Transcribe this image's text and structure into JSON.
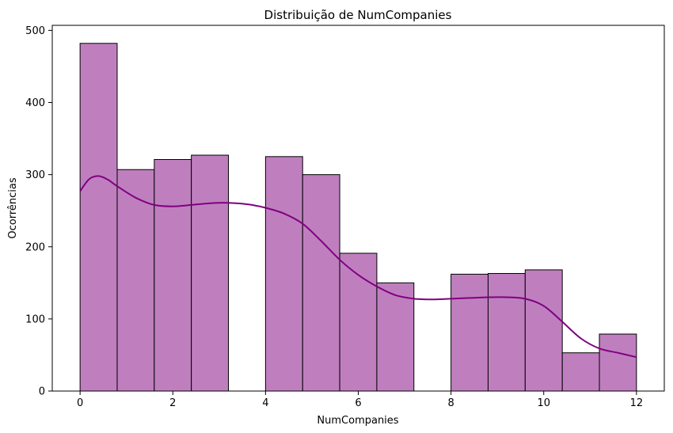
{
  "chart_data": {
    "type": "bar",
    "subtype": "histogram_with_kde",
    "title": "Distribuição de NumCompanies",
    "xlabel": "NumCompanies",
    "ylabel": "Ocorrências",
    "xlim": [
      -0.6,
      12.6
    ],
    "ylim": [
      0,
      507
    ],
    "xticks": [
      0,
      2,
      4,
      6,
      8,
      10,
      12
    ],
    "yticks": [
      0,
      100,
      200,
      300,
      400,
      500
    ],
    "grid": false,
    "bar_color": "#bf7fbf",
    "bar_edge_color": "#000000",
    "kde_color": "#800080",
    "bins": [
      {
        "x0": 0.0,
        "x1": 0.8,
        "value": 482
      },
      {
        "x0": 0.8,
        "x1": 1.6,
        "value": 307
      },
      {
        "x0": 1.6,
        "x1": 2.4,
        "value": 321
      },
      {
        "x0": 2.4,
        "x1": 3.2,
        "value": 327
      },
      {
        "x0": 3.2,
        "x1": 4.0,
        "value": 0
      },
      {
        "x0": 4.0,
        "x1": 4.8,
        "value": 325
      },
      {
        "x0": 4.8,
        "x1": 5.6,
        "value": 300
      },
      {
        "x0": 5.6,
        "x1": 6.4,
        "value": 191
      },
      {
        "x0": 6.4,
        "x1": 7.2,
        "value": 150
      },
      {
        "x0": 7.2,
        "x1": 8.0,
        "value": 0
      },
      {
        "x0": 8.0,
        "x1": 8.8,
        "value": 162
      },
      {
        "x0": 8.8,
        "x1": 9.6,
        "value": 163
      },
      {
        "x0": 9.6,
        "x1": 10.4,
        "value": 168
      },
      {
        "x0": 10.4,
        "x1": 11.2,
        "value": 53
      },
      {
        "x0": 11.2,
        "x1": 12.0,
        "value": 79
      }
    ],
    "kde": {
      "x": [
        0,
        0.2,
        0.4,
        0.6,
        0.8,
        1.2,
        1.6,
        2.0,
        2.4,
        3.0,
        3.6,
        4.0,
        4.4,
        4.8,
        5.2,
        5.6,
        6.0,
        6.4,
        6.8,
        7.2,
        7.6,
        8.0,
        8.4,
        8.8,
        9.2,
        9.6,
        10.0,
        10.4,
        10.8,
        11.2,
        11.6,
        12.0
      ],
      "y": [
        277,
        294,
        298,
        293,
        284,
        268,
        258,
        256,
        258,
        261,
        259,
        254,
        246,
        232,
        208,
        182,
        161,
        145,
        133,
        128,
        127,
        128,
        129,
        130,
        130,
        128,
        118,
        96,
        73,
        59,
        53,
        47
      ]
    }
  }
}
